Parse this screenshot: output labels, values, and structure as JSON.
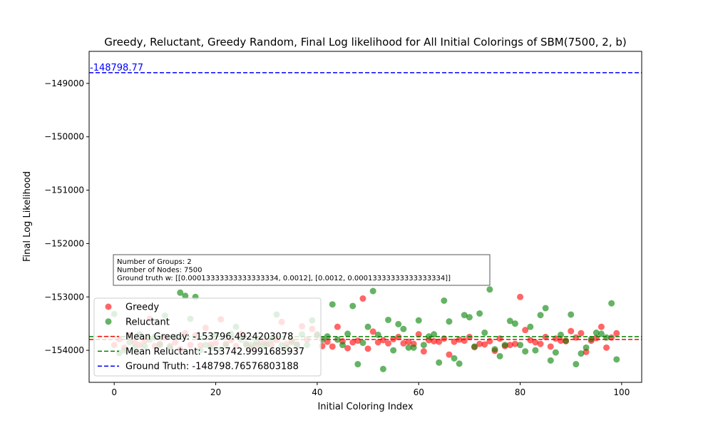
{
  "chart_data": {
    "type": "scatter",
    "title": "Greedy, Reluctant, Greedy Random, Final Log likelihood for All Initial Colorings of SBM(7500, 2, b)",
    "xlabel": "Initial Coloring Index",
    "ylabel": "Final Log Likelihood",
    "xlim": [
      -4.95,
      103.95
    ],
    "ylim": [
      -154600,
      -148400
    ],
    "xticks": [
      0,
      20,
      40,
      60,
      80,
      100
    ],
    "yticks": [
      -149000,
      -150000,
      -151000,
      -152000,
      -153000,
      -154000
    ],
    "xtick_labels": [
      "0",
      "20",
      "40",
      "60",
      "80",
      "100"
    ],
    "ytick_labels": [
      "−149000",
      "−150000",
      "−151000",
      "−152000",
      "−153000",
      "−154000"
    ],
    "grid": false,
    "legend_placement": "lower-left",
    "series": [
      {
        "name": "Greedy",
        "color": "#ff0000",
        "x": [
          0,
          1,
          2,
          3,
          4,
          5,
          6,
          7,
          8,
          9,
          10,
          11,
          12,
          13,
          14,
          15,
          16,
          17,
          18,
          19,
          20,
          21,
          22,
          23,
          24,
          25,
          26,
          27,
          28,
          29,
          30,
          31,
          32,
          33,
          34,
          35,
          36,
          37,
          38,
          39,
          40,
          41,
          42,
          43,
          44,
          45,
          46,
          47,
          48,
          49,
          50,
          51,
          52,
          53,
          54,
          55,
          56,
          57,
          58,
          59,
          60,
          61,
          62,
          63,
          64,
          65,
          66,
          67,
          68,
          69,
          70,
          71,
          72,
          73,
          74,
          75,
          76,
          77,
          78,
          79,
          80,
          81,
          82,
          83,
          84,
          85,
          86,
          87,
          88,
          89,
          90,
          91,
          92,
          93,
          94,
          95,
          96,
          97,
          98,
          99
        ],
        "y": [
          -153900,
          -153790,
          -153950,
          -153720,
          -153850,
          -153900,
          -153820,
          -153410,
          -153920,
          -153880,
          -153760,
          -153920,
          -153850,
          -153980,
          -153680,
          -153900,
          -153720,
          -153910,
          -153580,
          -153890,
          -153870,
          -153420,
          -153880,
          -153810,
          -153920,
          -153700,
          -153880,
          -153950,
          -153900,
          -153850,
          -153870,
          -153900,
          -153810,
          -153470,
          -153880,
          -153820,
          -153890,
          -153550,
          -153800,
          -153600,
          -153720,
          -153920,
          -153840,
          -153930,
          -153560,
          -153830,
          -153960,
          -153850,
          -153820,
          -153030,
          -153970,
          -153650,
          -153850,
          -153810,
          -153870,
          -153790,
          -153750,
          -153870,
          -153840,
          -153880,
          -153700,
          -154020,
          -153810,
          -153830,
          -153840,
          -153780,
          -154080,
          -153840,
          -153800,
          -153820,
          -153750,
          -153940,
          -153880,
          -153890,
          -153830,
          -154010,
          -153780,
          -153920,
          -153900,
          -153880,
          -153000,
          -153620,
          -153810,
          -153850,
          -153880,
          -153750,
          -153930,
          -153780,
          -153820,
          -153830,
          -153640,
          -153760,
          -153680,
          -154030,
          -153820,
          -153770,
          -153560,
          -153950,
          -153760,
          -153680
        ]
      },
      {
        "name": "Reluctant",
        "color": "#008000",
        "x": [
          0,
          1,
          2,
          3,
          4,
          5,
          6,
          7,
          8,
          9,
          10,
          11,
          12,
          13,
          14,
          15,
          16,
          17,
          18,
          19,
          20,
          21,
          22,
          23,
          24,
          25,
          26,
          27,
          28,
          29,
          30,
          31,
          32,
          33,
          34,
          35,
          36,
          37,
          38,
          39,
          40,
          41,
          42,
          43,
          44,
          45,
          46,
          47,
          48,
          49,
          50,
          51,
          52,
          53,
          54,
          55,
          56,
          57,
          58,
          59,
          60,
          61,
          62,
          63,
          64,
          65,
          66,
          67,
          68,
          69,
          70,
          71,
          72,
          73,
          74,
          75,
          76,
          77,
          78,
          79,
          80,
          81,
          82,
          83,
          84,
          85,
          86,
          87,
          88,
          89,
          90,
          91,
          92,
          93,
          94,
          95,
          96,
          97,
          98,
          99
        ],
        "y": [
          -153320,
          -154050,
          -154000,
          -153850,
          -153950,
          -153700,
          -153920,
          -153800,
          -153750,
          -153900,
          -153350,
          -153950,
          -153750,
          -152920,
          -152980,
          -153410,
          -153000,
          -154000,
          -153900,
          -153950,
          -153700,
          -153980,
          -153900,
          -153690,
          -153560,
          -153800,
          -153900,
          -153900,
          -153850,
          -153920,
          -153900,
          -153800,
          -153330,
          -153900,
          -153950,
          -153850,
          -153900,
          -153700,
          -153900,
          -153440,
          -153700,
          -153800,
          -153740,
          -153140,
          -153800,
          -153900,
          -153690,
          -153170,
          -154260,
          -153860,
          -153560,
          -152890,
          -153710,
          -154350,
          -153430,
          -154000,
          -153510,
          -153600,
          -153950,
          -153950,
          -153440,
          -153900,
          -153740,
          -153700,
          -154230,
          -153070,
          -153460,
          -154150,
          -154250,
          -153340,
          -153380,
          -153930,
          -153310,
          -153670,
          -152860,
          -153980,
          -154110,
          -153900,
          -153450,
          -153500,
          -153900,
          -154020,
          -153560,
          -154000,
          -153340,
          -153210,
          -154190,
          -154040,
          -153710,
          -153820,
          -153330,
          -154260,
          -154060,
          -153950,
          -153790,
          -153670,
          -153690,
          -153760,
          -153120,
          -154170
        ]
      }
    ],
    "lines": [
      {
        "name": "Mean Greedy: -153796.4924203078",
        "y": -153796.4924203078,
        "color": "#ff0000"
      },
      {
        "name": "Mean Reluctant: -153742.9991685937",
        "y": -153742.9991685937,
        "color": "#008000"
      },
      {
        "name": "Ground Truth: -148798.76576803188",
        "y": -148798.76576803188,
        "color": "#0000ff"
      }
    ],
    "annotation": {
      "text": "-148798.77",
      "x": -4.95,
      "y": -148798.77
    },
    "info_box": {
      "lines": [
        "Number of Groups: 2",
        "Number of Nodes: 7500",
        "Ground truth w: [[0.00013333333333333334, 0.0012], [0.0012, 0.00013333333333333334]]"
      ]
    }
  }
}
